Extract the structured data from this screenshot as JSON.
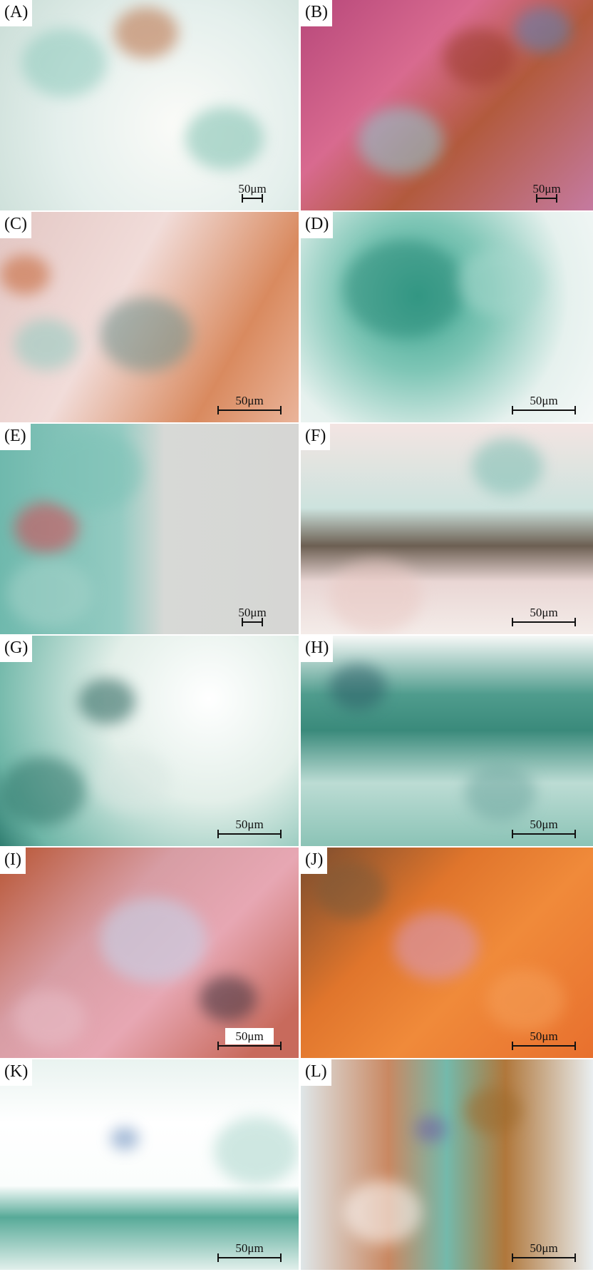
{
  "panels": [
    {
      "label": "(A)",
      "scale_label": "50μm"
    },
    {
      "label": "(B)",
      "scale_label": "50μm"
    },
    {
      "label": "(C)",
      "scale_label": "50μm"
    },
    {
      "label": "(D)",
      "scale_label": "50μm"
    },
    {
      "label": "(E)",
      "scale_label": "50μm"
    },
    {
      "label": "(F)",
      "scale_label": "50μm"
    },
    {
      "label": "(G)",
      "scale_label": "50μm"
    },
    {
      "label": "(H)",
      "scale_label": "50μm"
    },
    {
      "label": "(I)",
      "scale_label": "50μm"
    },
    {
      "label": "(J)",
      "scale_label": "50μm"
    },
    {
      "label": "(K)",
      "scale_label": "50μm"
    },
    {
      "label": "(L)",
      "scale_label": "50μm"
    }
  ]
}
